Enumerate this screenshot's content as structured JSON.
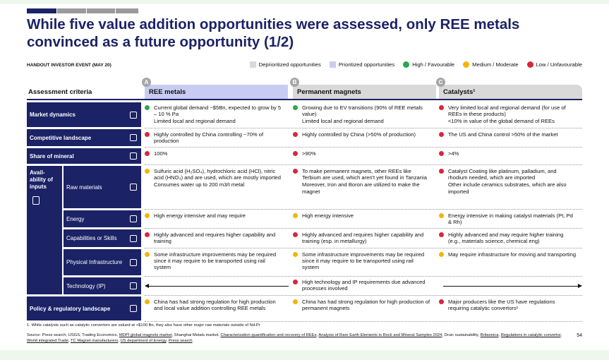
{
  "header": {
    "title": "While five value addition opportunities were assessed, only REE metals convinced as a future opportunity (1/2)",
    "event": "HANDOUT INVESTOR EVENT (MAY 20)"
  },
  "legend": [
    {
      "label": "Deprioritized opportunities",
      "color": "#d9d9d9",
      "shape": "square"
    },
    {
      "label": "Prioritized opportunities",
      "color": "#c9ccf2",
      "shape": "square"
    },
    {
      "label": "High / Favourable",
      "color": "#2aa84a",
      "shape": "circle"
    },
    {
      "label": "Medium / Moderate",
      "color": "#f5b400",
      "shape": "circle"
    },
    {
      "label": "Low / Unfavourable",
      "color": "#d9263a",
      "shape": "circle"
    }
  ],
  "table": {
    "criteria_header": "Assessment criteria",
    "columns": [
      {
        "letter": "A",
        "name": "REE metals",
        "color": "#c9ccf2"
      },
      {
        "letter": "B",
        "name": "Permanent magnets",
        "color": "#d9d9d9"
      },
      {
        "letter": "C",
        "name": "Catalysts¹",
        "color": "#d9d9d9"
      }
    ],
    "rows": [
      {
        "label": "Market dynamics",
        "cells": [
          {
            "items": [
              {
                "dot": "#2aa84a",
                "text": "Current global demand ~$5Bn, expected to grow by 5 – 10 % Pa"
              },
              {
                "text": "Limited local and regional demand"
              }
            ]
          },
          {
            "items": [
              {
                "dot": "#2aa84a",
                "text": "Growing due to EV transitions (90% of REE metals value)"
              },
              {
                "text": "Limited local and regional demand"
              }
            ]
          },
          {
            "items": [
              {
                "dot": "#d9263a",
                "text": "Very limited local and regional demand (for use of REEs in these products)"
              },
              {
                "text": "<10% in value of the global demand of REEs"
              }
            ]
          }
        ]
      },
      {
        "label": "Competitive landscape",
        "cells": [
          {
            "items": [
              {
                "dot": "#d9263a",
                "text": "Highly controlled by China controlling ~70% of production"
              }
            ]
          },
          {
            "items": [
              {
                "dot": "#d9263a",
                "text": "Highly controlled by China (>50% of production)"
              }
            ]
          },
          {
            "items": [
              {
                "dot": "#d9263a",
                "text": "The US and China control >50% of the market"
              }
            ]
          }
        ]
      },
      {
        "label": "Share of mineral",
        "cells": [
          {
            "items": [
              {
                "dot": "#d9263a",
                "text": "100%"
              }
            ]
          },
          {
            "items": [
              {
                "dot": "#d9263a",
                "text": ">90%"
              }
            ]
          },
          {
            "items": [
              {
                "dot": "#d9263a",
                "text": ">4%"
              }
            ]
          }
        ]
      },
      {
        "label": "Avail-ability of inputs",
        "subrows": [
          {
            "label": "Raw materials",
            "cells": [
              {
                "items": [
                  {
                    "dot": "#f5b400",
                    "text": "Sulfuric acid (H₂SO₄), hydrochloric acid (HCl), nitric acid (HNO₃) and are used, which are mostly imported"
                  },
                  {
                    "text": "Consumes water up to 200 m3/t metal"
                  }
                ]
              },
              {
                "items": [
                  {
                    "dot": "#d9263a",
                    "text": "To make permanent magnets, other REEs like Terbium are used, which aren't yet found in Tanzania"
                  },
                  {
                    "text": "Moreover, Iron and Boron are utilized to make the magnet"
                  }
                ]
              },
              {
                "items": [
                  {
                    "dot": "#d9263a",
                    "text": "Catalyst Coating like platinum, palladium, and rhodium needed, which are imported"
                  },
                  {
                    "text": "Other include ceramics substrates, which are also imported"
                  }
                ]
              }
            ]
          },
          {
            "label": "Energy",
            "cells": [
              {
                "items": [
                  {
                    "dot": "#f5b400",
                    "text": "High energy intensive and may require"
                  }
                ]
              },
              {
                "items": [
                  {
                    "dot": "#f5b400",
                    "text": "High energy intensive"
                  }
                ]
              },
              {
                "items": [
                  {
                    "dot": "#f5b400",
                    "text": "Energy intensive in making catalyst materials (Pt, Pd & Rh)"
                  }
                ]
              }
            ]
          },
          {
            "label": "Capabilities or Skills",
            "cells": [
              {
                "items": [
                  {
                    "dot": "#d9263a",
                    "text": "Highly advanced and requires higher capability and training"
                  }
                ]
              },
              {
                "items": [
                  {
                    "dot": "#d9263a",
                    "text": "Highly advanced and requires higher capability and training (esp. in metallurgy)"
                  }
                ]
              },
              {
                "items": [
                  {
                    "dot": "#d9263a",
                    "text": "Highly advanced and may require higher training (e.g., materials science, chemical eng)"
                  }
                ]
              }
            ]
          },
          {
            "label": "Physical Infrastructure",
            "cells": [
              {
                "items": [
                  {
                    "dot": "#f5b400",
                    "text": "Some infrastructure improvements may be required since it may require to be transported using rail system"
                  }
                ]
              },
              {
                "items": [
                  {
                    "dot": "#f5b400",
                    "text": "Some infrastructure improvements may be required since it may require to be transported using rail system"
                  }
                ]
              },
              {
                "items": [
                  {
                    "dot": "#f5b400",
                    "text": "May require infrastructure for moving and transporting"
                  }
                ]
              }
            ]
          },
          {
            "label": "Technology (IP)",
            "cells": [
              {
                "span": 3,
                "items": [
                  {
                    "dot": "#d9263a",
                    "text": "High technology and IP requirements due advanced processes involved"
                  }
                ]
              }
            ]
          }
        ]
      },
      {
        "label": "Policy & regulatory landscape",
        "cells": [
          {
            "items": [
              {
                "dot": "#f5b400",
                "text": "China has had strong regulation for high production and local value addition controlling REE metals"
              }
            ]
          },
          {
            "items": [
              {
                "dot": "#f5b400",
                "text": "China has had strong regulation for high production of permanent magnets"
              }
            ]
          },
          {
            "items": [
              {
                "dot": "#d9263a",
                "text": "Major producers like the US have regulations requiring catalytic convertors¹"
              }
            ]
          }
        ]
      }
    ]
  },
  "footnote": "1.   While catalysts such as catalytic convertors are valued at >$100 Bn, they also have other major raw materials outside of Nd-Pr",
  "source": [
    {
      "text": "Source: Press search, USGS, Trading Economics, "
    },
    {
      "text": "MDPI global magnets market",
      "link": true
    },
    {
      "text": ", Shanghai Metals market, "
    },
    {
      "text": "Characterization quantification and recovery of REEs",
      "link": true
    },
    {
      "text": ", "
    },
    {
      "text": "Analysis of Rare Earth Elements in Rock and Mineral Samples 2024",
      "link": true
    },
    {
      "text": ", Druic sustainability, "
    },
    {
      "text": "Britannica",
      "link": true
    },
    {
      "text": ", "
    },
    {
      "text": "Regulations in catalytic convertor",
      "link": true
    },
    {
      "text": ", "
    },
    {
      "text": "World integrated Trade",
      "link": true
    },
    {
      "text": ", "
    },
    {
      "text": "TC Magnet manufacturers",
      "link": true
    },
    {
      "text": ", "
    },
    {
      "text": "US department of Energy",
      "link": true
    },
    {
      "text": ", "
    },
    {
      "text": "Press search",
      "link": true
    }
  ],
  "page_number": "54"
}
